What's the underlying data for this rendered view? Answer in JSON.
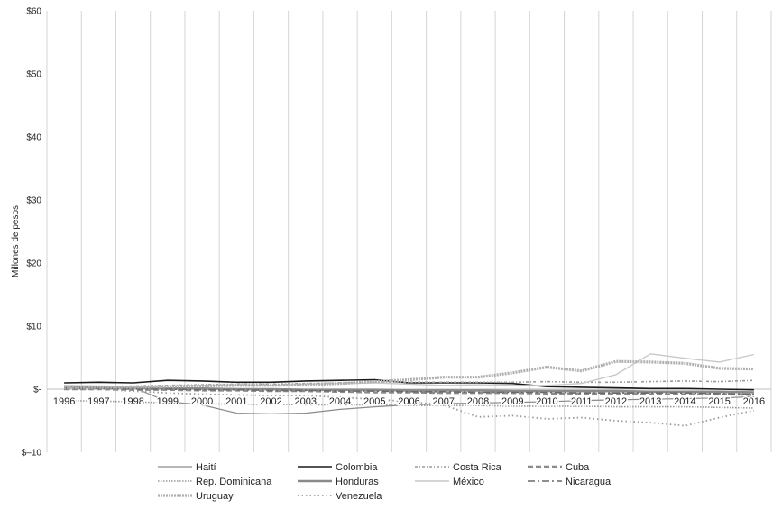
{
  "chart_data": {
    "type": "line",
    "title": "",
    "xlabel": "",
    "ylabel": "Millones de pesos",
    "ylim": [
      -10,
      60
    ],
    "yticks": [
      -10,
      0,
      10,
      20,
      30,
      40,
      50,
      60
    ],
    "ytick_labels": [
      "$–10",
      "$-",
      "$10",
      "$20",
      "$30",
      "$40",
      "$50",
      "$60"
    ],
    "categories": [
      "1996",
      "1997",
      "1998",
      "1999",
      "2000",
      "2001",
      "2002",
      "2003",
      "2004",
      "2005",
      "2006",
      "2007",
      "2008",
      "2009",
      "2010",
      "2011",
      "2012",
      "2013",
      "2014",
      "2015",
      "2016"
    ],
    "grid": "vertical",
    "legend_position": "bottom",
    "series": [
      {
        "name": "Haití",
        "color": "#8a8a8a",
        "dash": "",
        "width": 1.2,
        "values": [
          0.5,
          0.4,
          0.3,
          -2.0,
          -2.5,
          -3.8,
          -3.9,
          -3.8,
          -3.2,
          -2.8,
          -2.5,
          -2.3,
          -2.2,
          -2.1,
          -2.0,
          -1.8,
          -1.7,
          -1.6,
          -1.5,
          -1.4,
          -1.2
        ]
      },
      {
        "name": "Colombia",
        "color": "#1a1a1a",
        "dash": "",
        "width": 1.6,
        "values": [
          1.0,
          1.1,
          1.0,
          1.4,
          1.3,
          1.1,
          1.1,
          1.3,
          1.4,
          1.5,
          1.0,
          1.0,
          1.0,
          0.9,
          0.4,
          0.3,
          0.2,
          0.1,
          0.1,
          0.0,
          -0.1
        ]
      },
      {
        "name": "Costa Rica",
        "color": "#9a9a9a",
        "dash": "3,2,1,2",
        "width": 1.6,
        "values": [
          0.3,
          0.4,
          0.5,
          0.6,
          0.7,
          0.8,
          0.8,
          0.9,
          1.0,
          1.1,
          1.1,
          1.1,
          1.1,
          1.1,
          1.2,
          1.1,
          1.1,
          1.2,
          1.3,
          1.2,
          1.4
        ]
      },
      {
        "name": "Cuba",
        "color": "#8a8a8a",
        "dash": "6,3",
        "width": 2.4,
        "values": [
          0.0,
          0.0,
          -0.1,
          -0.1,
          -0.2,
          -0.2,
          -0.3,
          -0.3,
          -0.4,
          -0.5,
          -0.5,
          -0.6,
          -0.6,
          -0.6,
          -0.7,
          -0.7,
          -0.7,
          -0.8,
          -0.8,
          -0.8,
          -0.9
        ]
      },
      {
        "name": "Rep. Dominicana",
        "color": "#9a9a9a",
        "dash": "1.5,1.5",
        "width": 1.6,
        "values": [
          -1.8,
          -1.9,
          -2.0,
          -2.2,
          -2.3,
          -2.4,
          -2.4,
          -2.5,
          -2.5,
          -2.5,
          -2.6,
          -2.6,
          -2.6,
          -2.7,
          -2.7,
          -2.7,
          -2.8,
          -2.8,
          -2.8,
          -2.9,
          -3.0
        ]
      },
      {
        "name": "Honduras",
        "color": "#8a8a8a",
        "dash": "",
        "width": 2.6,
        "values": [
          0.4,
          0.3,
          0.2,
          0.1,
          0.1,
          0.0,
          0.0,
          -0.1,
          -0.1,
          -0.1,
          -0.2,
          -0.2,
          -0.2,
          -0.3,
          -0.3,
          -0.3,
          -0.3,
          -0.4,
          -0.4,
          -0.4,
          -0.5
        ]
      },
      {
        "name": "México",
        "color": "#c8c8c8",
        "dash": "",
        "width": 1.4,
        "values": [
          0.6,
          0.5,
          0.4,
          0.5,
          0.6,
          0.7,
          0.6,
          0.8,
          0.9,
          1.0,
          0.8,
          0.6,
          0.7,
          0.6,
          0.6,
          0.9,
          2.3,
          5.6,
          4.9,
          4.3,
          5.5
        ]
      },
      {
        "name": "Nicaragua",
        "color": "#6a6a6a",
        "dash": "8,3,2,3",
        "width": 1.6,
        "values": [
          0.1,
          0.1,
          0.0,
          0.0,
          -0.1,
          -0.1,
          -0.2,
          -0.2,
          -0.3,
          -0.3,
          -0.4,
          -0.4,
          -0.5,
          -0.5,
          -0.5,
          -0.6,
          -0.6,
          -0.6,
          -0.6,
          -0.7,
          -0.8
        ]
      },
      {
        "name": "Uruguay",
        "color": "#b0b0b0",
        "dash": "2,1",
        "width": 3.2,
        "values": [
          0.2,
          0.3,
          0.3,
          0.4,
          0.5,
          0.6,
          0.6,
          0.7,
          0.9,
          1.2,
          1.5,
          1.9,
          1.9,
          2.6,
          3.5,
          2.9,
          4.4,
          4.3,
          4.1,
          3.3,
          3.2
        ]
      },
      {
        "name": "Venezuela",
        "color": "#9a9a9a",
        "dash": "1.5,3",
        "width": 1.8,
        "values": [
          0.2,
          0.0,
          -0.3,
          -0.6,
          -0.8,
          -0.9,
          -1.0,
          -1.0,
          -1.3,
          -1.6,
          -2.0,
          -2.5,
          -4.4,
          -4.2,
          -4.7,
          -4.5,
          -5.0,
          -5.3,
          -5.8,
          -4.5,
          -3.4
        ]
      }
    ]
  }
}
